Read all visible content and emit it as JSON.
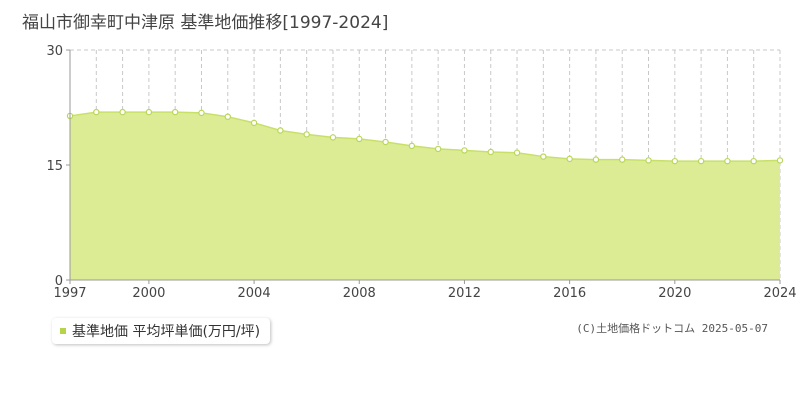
{
  "page": {
    "title": "福山市御幸町中津原 基準地価推移[1997-2024]",
    "legend_label": "基準地価 平均坪単価(万円/坪)",
    "copyright": "(C)土地価格ドットコム 2025-05-07"
  },
  "colors": {
    "fill": "#dcec94",
    "line": "#c8e06a",
    "marker_stroke": "#b9d65a",
    "marker_fill": "#ffffff",
    "grid": "#c8c8c8",
    "legend_swatch": "#b5d44a"
  },
  "chart_data": {
    "type": "area",
    "title": "福山市御幸町中津原 基準地価推移[1997-2024]",
    "xlabel": "",
    "ylabel": "",
    "x": [
      1997,
      1998,
      1999,
      2000,
      2001,
      2002,
      2003,
      2004,
      2005,
      2006,
      2007,
      2008,
      2009,
      2010,
      2011,
      2012,
      2013,
      2014,
      2015,
      2016,
      2017,
      2018,
      2019,
      2020,
      2021,
      2022,
      2023,
      2024
    ],
    "series": [
      {
        "name": "基準地価 平均坪単価(万円/坪)",
        "values": [
          21.4,
          21.9,
          21.9,
          21.9,
          21.9,
          21.8,
          21.3,
          20.5,
          19.5,
          19.0,
          18.6,
          18.4,
          18.0,
          17.5,
          17.1,
          16.9,
          16.7,
          16.6,
          16.1,
          15.8,
          15.7,
          15.7,
          15.6,
          15.5,
          15.5,
          15.5,
          15.5,
          15.6
        ]
      }
    ],
    "xlim": [
      1997,
      2024
    ],
    "ylim": [
      0,
      30
    ],
    "x_ticks": [
      "1997",
      "2000",
      "2004",
      "2008",
      "2012",
      "2016",
      "2020",
      "2024"
    ],
    "y_ticks": [
      "0",
      "15",
      "30"
    ],
    "grid": true,
    "legend_position": "bottom-left"
  }
}
